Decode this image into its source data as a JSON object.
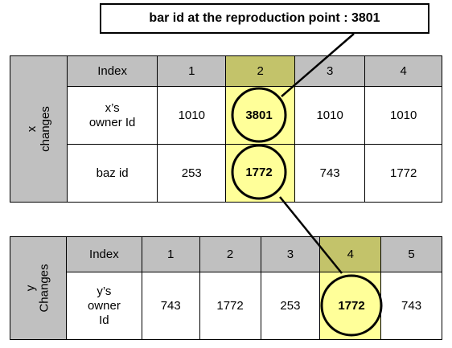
{
  "callout": {
    "text": "bar id at the reproduction point  : 3801"
  },
  "x_table": {
    "side_label_line1": "x",
    "side_label_line2": "changes",
    "index_header": "Index",
    "indices": [
      "1",
      "2",
      "3",
      "4"
    ],
    "row1_label_line1": "x’s",
    "row1_label_line2": "owner Id",
    "row1_values": [
      "1010",
      "3801",
      "1010",
      "1010"
    ],
    "row2_label": "baz id",
    "row2_values": [
      "253",
      "1772",
      "743",
      "1772"
    ],
    "highlight_column_index": 2
  },
  "y_table": {
    "side_label_line1": "y",
    "side_label_line2": "Changes",
    "index_header": "Index",
    "indices": [
      "1",
      "2",
      "3",
      "4",
      "5"
    ],
    "row1_label_line1": "y’s",
    "row1_label_line2": "owner",
    "row1_label_line3": "Id",
    "row1_values": [
      "743",
      "1772",
      "253",
      "1772",
      "743"
    ],
    "highlight_column_index": 4
  },
  "colors": {
    "header_gray": "#c0c0c0",
    "highlight_header": "#c3c36a",
    "highlight_cell": "#ffff99",
    "circle_fill": "#ffff99",
    "line": "#000000"
  }
}
